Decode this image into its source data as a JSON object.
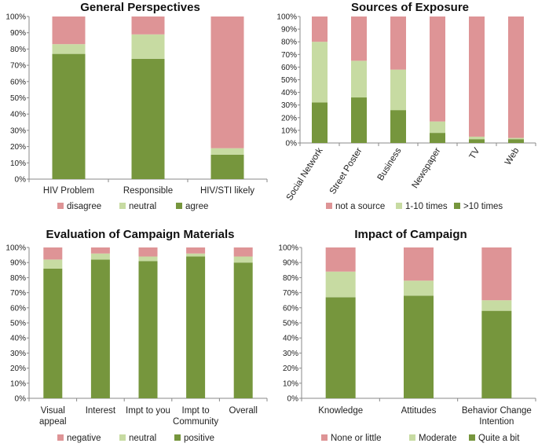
{
  "colors": {
    "pink": "#DE9496",
    "light": "#C7DBA2",
    "green": "#76963D"
  },
  "y_ticks": [
    "0%",
    "10%",
    "20%",
    "30%",
    "40%",
    "50%",
    "60%",
    "70%",
    "80%",
    "90%",
    "100%"
  ],
  "chart_data": [
    {
      "id": "general",
      "type": "bar",
      "stacked": true,
      "title": "General Perspectives",
      "categories": [
        "HIV Problem",
        "Responsible",
        "HIV/STI likely"
      ],
      "series": [
        {
          "name": "agree",
          "color": "#76963D",
          "values": [
            77,
            74,
            15
          ]
        },
        {
          "name": "neutral",
          "color": "#C7DBA2",
          "values": [
            6,
            15,
            4
          ]
        },
        {
          "name": "disagree",
          "color": "#DE9496",
          "values": [
            17,
            11,
            81
          ]
        }
      ],
      "legend": [
        "disagree",
        "neutral",
        "agree"
      ],
      "ylim": [
        0,
        100
      ]
    },
    {
      "id": "sources",
      "type": "bar",
      "stacked": true,
      "title": "Sources of Exposure",
      "categories": [
        "Social Network",
        "Street Poster",
        "Business",
        "Newspaper",
        "TV",
        "Web"
      ],
      "series": [
        {
          "name": ">10 times",
          "color": "#76963D",
          "values": [
            32,
            36,
            26,
            8,
            3,
            3
          ]
        },
        {
          "name": "1-10 times",
          "color": "#C7DBA2",
          "values": [
            48,
            29,
            32,
            9,
            2,
            1
          ]
        },
        {
          "name": "not a source",
          "color": "#DE9496",
          "values": [
            20,
            35,
            42,
            83,
            95,
            96
          ]
        }
      ],
      "legend": [
        "not a source",
        "1-10 times",
        ">10 times"
      ],
      "ylim": [
        0,
        100
      ]
    },
    {
      "id": "evaluation",
      "type": "bar",
      "stacked": true,
      "title": "Evaluation of Campaign Materials",
      "categories": [
        "Visual appeal",
        "Interest",
        "Impt to you",
        "Impt to Community",
        "Overall"
      ],
      "series": [
        {
          "name": "positive",
          "color": "#76963D",
          "values": [
            86,
            92,
            91,
            94,
            90
          ]
        },
        {
          "name": "neutral",
          "color": "#C7DBA2",
          "values": [
            6,
            4,
            3,
            2,
            4
          ]
        },
        {
          "name": "negative",
          "color": "#DE9496",
          "values": [
            8,
            4,
            6,
            4,
            6
          ]
        }
      ],
      "legend": [
        "negative",
        "neutral",
        "positive"
      ],
      "ylim": [
        0,
        100
      ]
    },
    {
      "id": "impact",
      "type": "bar",
      "stacked": true,
      "title": "Impact of Campaign",
      "categories": [
        "Knowledge",
        "Attitudes",
        "Behavior Change Intention"
      ],
      "series": [
        {
          "name": "Quite a bit",
          "color": "#76963D",
          "values": [
            67,
            68,
            58
          ]
        },
        {
          "name": "Moderate",
          "color": "#C7DBA2",
          "values": [
            17,
            10,
            7
          ]
        },
        {
          "name": "None or little",
          "color": "#DE9496",
          "values": [
            16,
            22,
            35
          ]
        }
      ],
      "legend": [
        "None or little",
        "Moderate",
        "Quite a bit"
      ],
      "ylim": [
        0,
        100
      ]
    }
  ]
}
